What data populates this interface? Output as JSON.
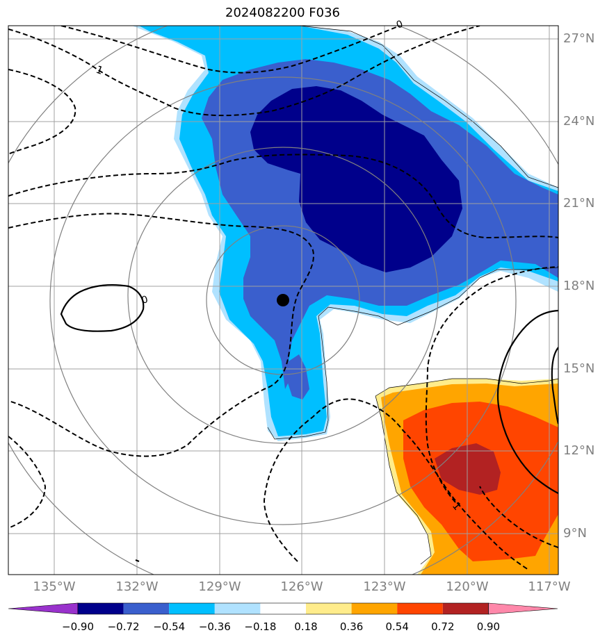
{
  "title": "2024082200 F036",
  "latitude_labels": [
    "27°N",
    "24°N",
    "21°N",
    "18°N",
    "15°N",
    "12°N",
    "9°N"
  ],
  "longitude_labels": [
    "135°W",
    "132°W",
    "129°W",
    "126°W",
    "123°W",
    "120°W",
    "117°W"
  ],
  "contour_labels": [
    "1",
    "0",
    "0",
    "1"
  ],
  "colorbar": {
    "labels": [
      "−0.90",
      "−0.72",
      "−0.54",
      "−0.36",
      "−0.18",
      "0.18",
      "0.36",
      "0.54",
      "0.72",
      "0.90"
    ],
    "colors": [
      "#9932cc",
      "#00008b",
      "#3a5fcd",
      "#00bfff",
      "#b0e2ff",
      "#ffffff",
      "#ffec8b",
      "#ffa500",
      "#ff4500",
      "#b22222",
      "#ff88aa"
    ]
  },
  "storm_center": {
    "lon": -126.7,
    "lat": 17.4
  },
  "colors": {
    "grid": "#a0a0a0",
    "range_rings": "#808080",
    "label_gray": "#808080"
  }
}
